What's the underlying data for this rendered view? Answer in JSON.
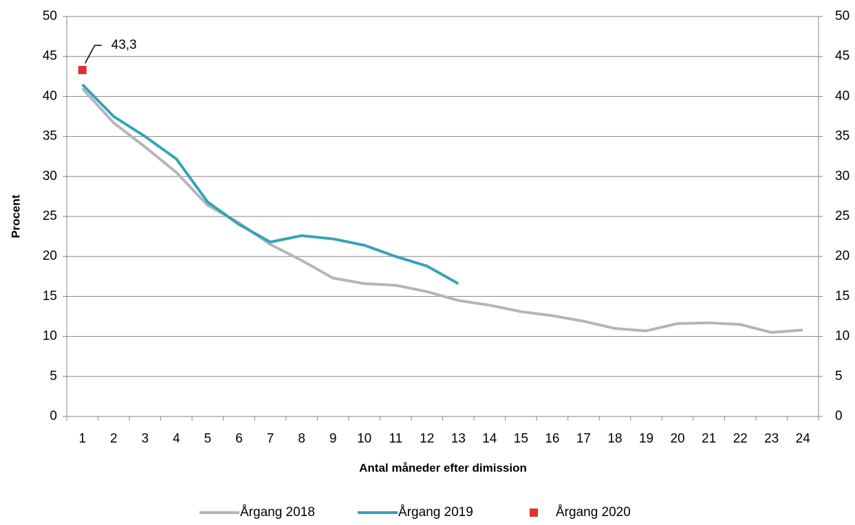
{
  "chart_data": {
    "type": "line",
    "x_label": "Antal måneder efter dimission",
    "y_label": "Procent",
    "categories": [
      "1",
      "2",
      "3",
      "4",
      "5",
      "6",
      "7",
      "8",
      "9",
      "10",
      "11",
      "12",
      "13",
      "14",
      "15",
      "16",
      "17",
      "18",
      "19",
      "20",
      "21",
      "22",
      "23",
      "24"
    ],
    "series": [
      {
        "name": "Årgang 2018",
        "color": "#b4b5bc",
        "values": [
          41.0,
          36.7,
          33.7,
          30.5,
          26.4,
          24.2,
          21.5,
          19.5,
          17.3,
          16.6,
          16.4,
          15.6,
          14.5,
          13.9,
          13.1,
          12.6,
          11.9,
          11.0,
          10.7,
          11.6,
          11.7,
          11.5,
          10.5,
          10.8
        ]
      },
      {
        "name": "Årgang 2019",
        "color": "#35a3b7",
        "values": [
          41.5,
          37.5,
          35.0,
          32.2,
          26.8,
          24.0,
          21.8,
          22.6,
          22.2,
          21.4,
          20.0,
          18.8,
          16.6,
          null,
          null,
          null,
          null,
          null,
          null,
          null,
          null,
          null,
          null,
          null
        ]
      },
      {
        "name": "Årgang 2020",
        "color": "#e03131",
        "marker": "square",
        "values": [
          43.3,
          null,
          null,
          null,
          null,
          null,
          null,
          null,
          null,
          null,
          null,
          null,
          null,
          null,
          null,
          null,
          null,
          null,
          null,
          null,
          null,
          null,
          null,
          null
        ],
        "value_labels": [
          "43,3",
          null,
          null,
          null,
          null,
          null,
          null,
          null,
          null,
          null,
          null,
          null,
          null,
          null,
          null,
          null,
          null,
          null,
          null,
          null,
          null,
          null,
          null,
          null
        ]
      }
    ],
    "ylim": [
      0,
      50
    ],
    "yticks": [
      0,
      5,
      10,
      15,
      20,
      25,
      30,
      35,
      40,
      45,
      50
    ],
    "y2lim": [
      0,
      50
    ],
    "y2ticks": [
      0,
      5,
      10,
      15,
      20,
      25,
      30,
      35,
      40,
      45,
      50
    ],
    "grid": true,
    "legend": "bottom"
  }
}
